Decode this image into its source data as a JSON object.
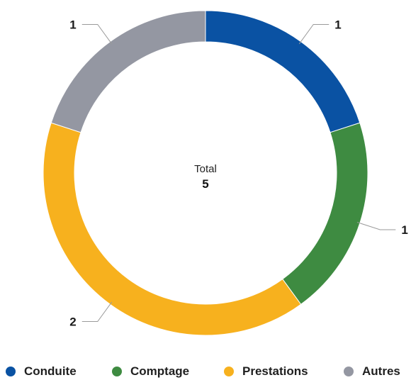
{
  "chart_data": {
    "type": "pie",
    "variant": "donut",
    "center_label": "Total",
    "center_value": "5",
    "slices": [
      {
        "name": "Conduite",
        "value": 1,
        "label": "1",
        "color": "#0a52a3"
      },
      {
        "name": "Comptage",
        "value": 1,
        "label": "1",
        "color": "#3e8b41"
      },
      {
        "name": "Prestations",
        "value": 2,
        "label": "2",
        "color": "#f7b11e"
      },
      {
        "name": "Autres",
        "value": 1,
        "label": "1",
        "color": "#9497a2"
      }
    ],
    "legend_position": "bottom"
  }
}
